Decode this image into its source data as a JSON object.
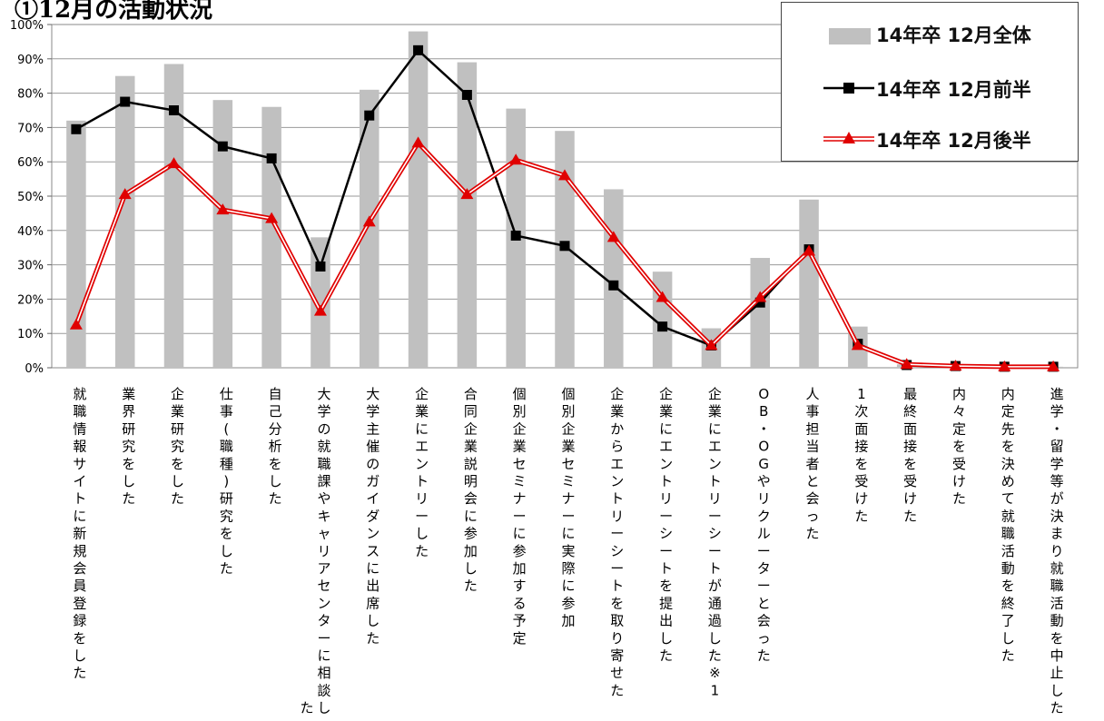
{
  "page_title": "①12月の活動状況",
  "chart_data": {
    "type": "bar",
    "categories": [
      "就職情報サイトに新規会員登録をした",
      "業界研究をした",
      "企業研究をした",
      "仕事(職種)研究をした",
      "自己分析をした",
      "大学の就職課やキャリアセンターに相談した",
      "大学主催のガイダンスに出席した",
      "企業にエントリーした",
      "合同企業説明会に参加した",
      "個別企業セミナーに参加する予定",
      "個別企業セミナーに実際に参加",
      "企業からエントリーシートを取り寄せた",
      "企業にエントリーシートを提出した",
      "企業にエントリーシートが通過した※1",
      "OB・OGやリクルーターと会った",
      "人事担当者と会った",
      "1次面接を受けた",
      "最終面接を受けた",
      "内々定を受けた",
      "内定先を決めて就職活動を終了した",
      "進学・留学等が決まり就職活動を中止した"
    ],
    "series": [
      {
        "name": "14年卒 12月全体",
        "kind": "bar",
        "color": "#c0c0c0",
        "values": [
          72,
          85,
          88.5,
          78,
          76,
          38,
          81,
          98,
          89,
          75.5,
          69,
          52,
          28,
          11.5,
          32,
          49,
          12,
          1,
          0.5,
          0.3,
          0.3
        ]
      },
      {
        "name": "14年卒 12月前半",
        "kind": "line",
        "color": "#000000",
        "marker": "square",
        "values": [
          69.5,
          77.5,
          75,
          64.5,
          61,
          29.5,
          73.5,
          92.5,
          79.5,
          38.5,
          35.5,
          24,
          12,
          6.5,
          19,
          34.5,
          7,
          0.8,
          0.5,
          0.3,
          0.3
        ]
      },
      {
        "name": "14年卒 12月後半",
        "kind": "line",
        "color": "#e00000",
        "marker": "triangle",
        "values": [
          12.5,
          50.5,
          59.5,
          46,
          43.5,
          16.5,
          42.5,
          65.5,
          50.5,
          60.5,
          56,
          38,
          20.5,
          6.5,
          20.5,
          34,
          6.5,
          1,
          0.5,
          0.3,
          0.3
        ]
      }
    ],
    "y_ticks": [
      "0%",
      "10%",
      "20%",
      "30%",
      "40%",
      "50%",
      "60%",
      "70%",
      "80%",
      "90%",
      "100%"
    ],
    "ylim": [
      0,
      100
    ],
    "grid": true,
    "legend_position": "top-right"
  }
}
